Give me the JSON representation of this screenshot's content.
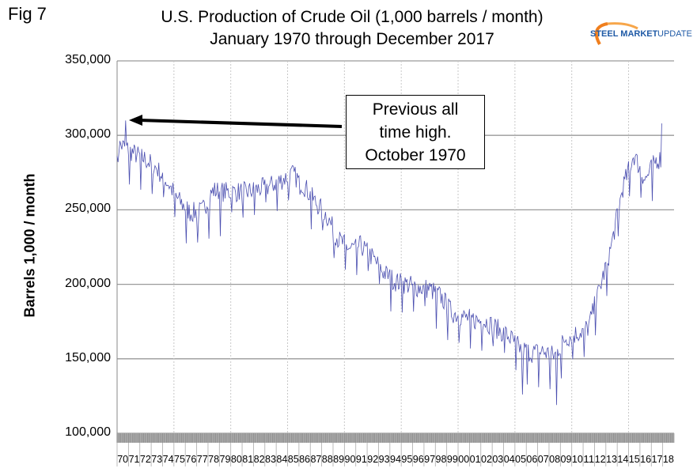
{
  "figure_label": "Fig 7",
  "logo": {
    "text_bold": "STEEL MARKET",
    "text_light": "UPDATE",
    "colors": {
      "blue": "#1f5aa6",
      "orange": "#f07f1e"
    }
  },
  "chart_data": {
    "type": "line",
    "title": "U.S. Production of Crude Oil (1,000 barrels / month)",
    "subtitle": "January 1970 through December 2017",
    "xlabel": "",
    "ylabel": "Barrels 1,000 / month",
    "ylim": [
      100000,
      350000
    ],
    "yticks": [
      "350,000",
      "300,000",
      "250,000",
      "200,000",
      "150,000",
      "100,000"
    ],
    "ytick_values": [
      350000,
      300000,
      250000,
      200000,
      150000,
      100000
    ],
    "xtick_labels": [
      "70",
      "71",
      "72",
      "73",
      "74",
      "75",
      "76",
      "77",
      "78",
      "79",
      "80",
      "81",
      "82",
      "83",
      "84",
      "85",
      "86",
      "87",
      "88",
      "89",
      "90",
      "91",
      "92",
      "93",
      "94",
      "95",
      "96",
      "97",
      "98",
      "99",
      "00",
      "01",
      "02",
      "03",
      "04",
      "05",
      "06",
      "07",
      "08",
      "09",
      "10",
      "11",
      "12",
      "13",
      "14",
      "15",
      "16",
      "17",
      "18"
    ],
    "grid": "horizontal solid, vertical dotted every 5 years",
    "series": [
      {
        "name": "U.S. crude oil production",
        "color": "#4b4fb0",
        "years": [
          1970,
          1971,
          1972,
          1973,
          1974,
          1975,
          1976,
          1977,
          1978,
          1979,
          1980,
          1981,
          1982,
          1983,
          1984,
          1985,
          1986,
          1987,
          1988,
          1989,
          1990,
          1991,
          1992,
          1993,
          1994,
          1995,
          1996,
          1997,
          1998,
          1999,
          2000,
          2001,
          2002,
          2003,
          2004,
          2005,
          2006,
          2007,
          2008,
          2009,
          2010,
          2011,
          2012,
          2013,
          2014,
          2015,
          2016,
          2017
        ],
        "annual_avg_monthly": [
          293000,
          288000,
          284000,
          278000,
          268000,
          256000,
          248000,
          249000,
          263000,
          262000,
          262000,
          262000,
          264000,
          266000,
          270000,
          274000,
          266000,
          255000,
          246000,
          230000,
          224000,
          226000,
          218000,
          208000,
          202000,
          200000,
          198000,
          197000,
          192000,
          181000,
          178000,
          176000,
          175000,
          170000,
          165000,
          157000,
          154000,
          155000,
          152000,
          164000,
          167000,
          171000,
          197000,
          225000,
          264000,
          287000,
          270000,
          284000
        ],
        "notable_points": [
          {
            "date": "1970-10",
            "value": 310000,
            "note": "Previous all time high"
          },
          {
            "date": "2005-09",
            "value": 126000
          },
          {
            "date": "2008-09",
            "value": 119000
          },
          {
            "date": "2017-12",
            "value": 308000
          }
        ]
      }
    ],
    "annotation": "Previous all time high. October 1970",
    "annotation_lines": [
      "Previous all",
      "time high.",
      "October 1970"
    ]
  }
}
